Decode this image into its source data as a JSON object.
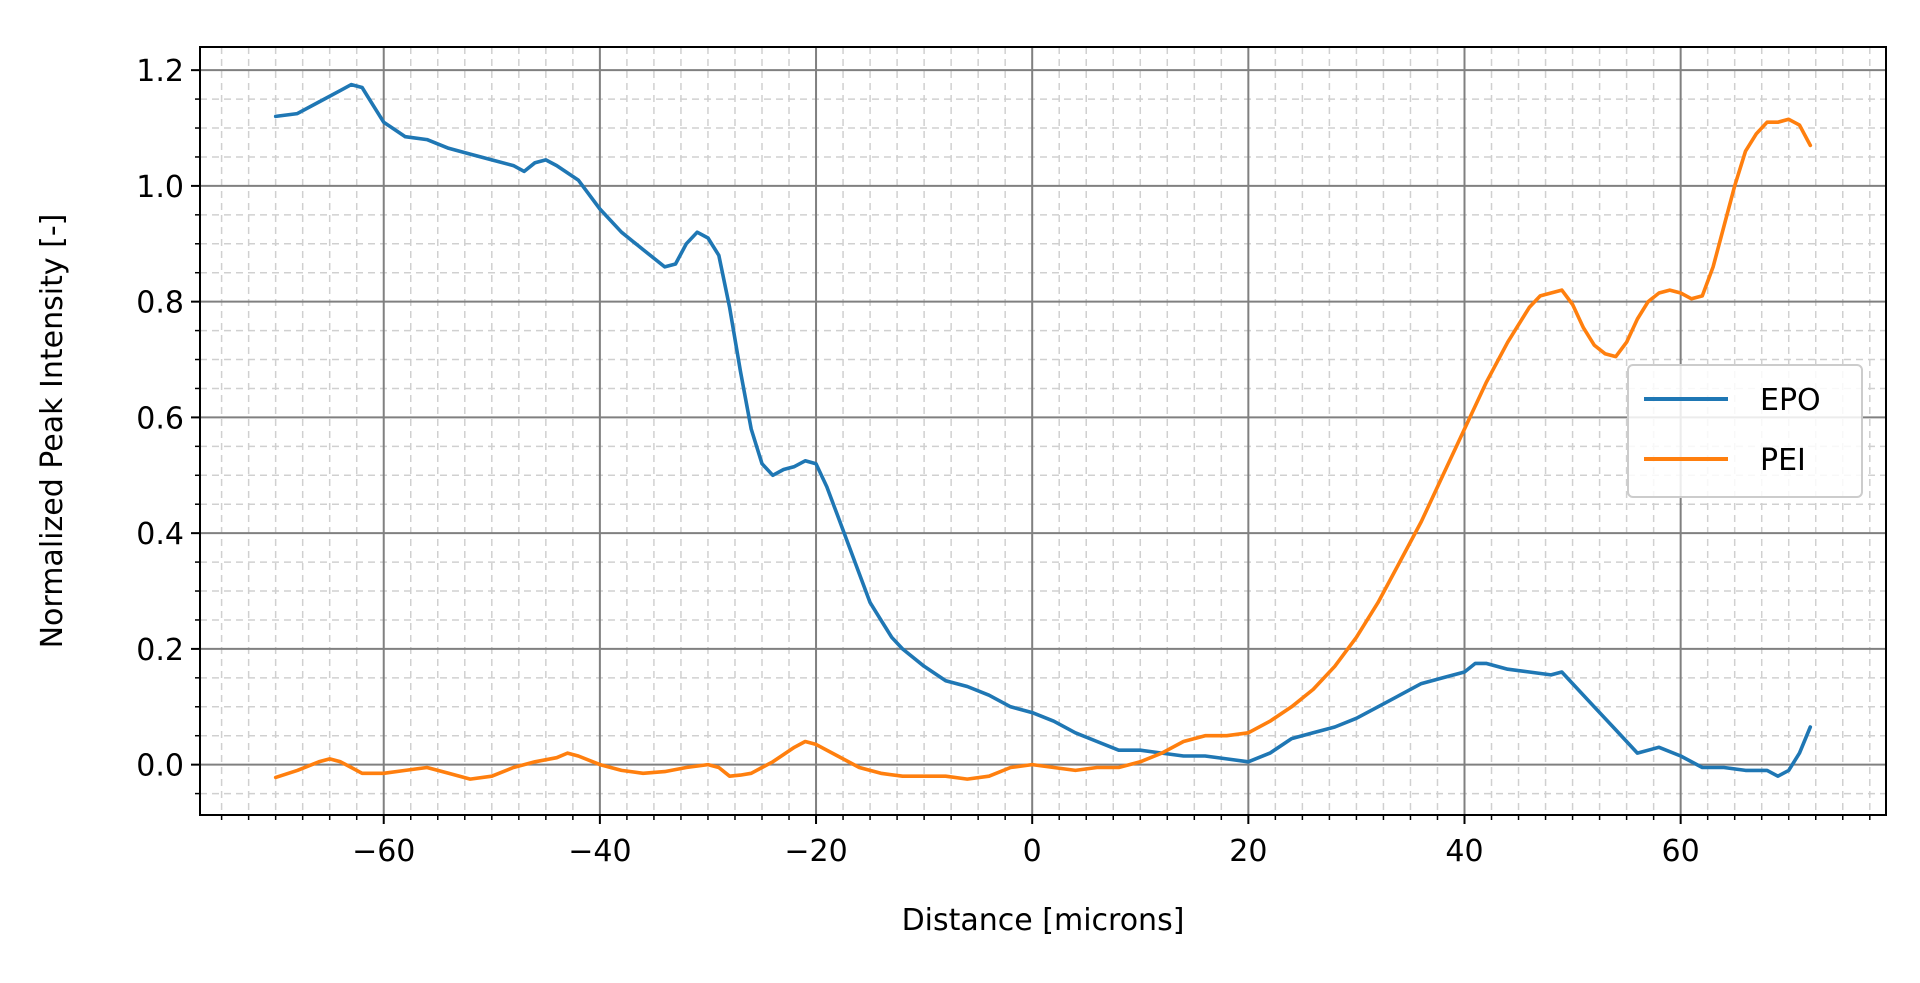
{
  "chart_data": {
    "type": "line",
    "xlabel": "Distance [microns]",
    "ylabel": "Normalized Peak Intensity [-]",
    "xlim": [
      -77,
      79
    ],
    "ylim": [
      -0.087,
      1.24
    ],
    "x_ticks": [
      -60,
      -40,
      -20,
      0,
      20,
      40,
      60
    ],
    "x_tick_labels": [
      "−60",
      "−40",
      "−20",
      "0",
      "20",
      "40",
      "60"
    ],
    "x_minor_step": 2.5,
    "y_ticks": [
      0.0,
      0.2,
      0.4,
      0.6,
      0.8,
      1.0,
      1.2
    ],
    "y_tick_labels": [
      "0.0",
      "0.2",
      "0.4",
      "0.6",
      "0.8",
      "1.0",
      "1.2"
    ],
    "y_minor_step": 0.05,
    "grid": {
      "major": true,
      "minor": true,
      "major_color": "#808080",
      "minor_color": "#d0d0d0"
    },
    "legend": {
      "position": "center-right"
    },
    "series": [
      {
        "name": "EPO",
        "color": "#1f77b4",
        "x": [
          -70,
          -68,
          -66,
          -64,
          -63,
          -62,
          -61,
          -60,
          -58,
          -56,
          -54,
          -52,
          -50,
          -48,
          -47,
          -46,
          -45,
          -44,
          -42,
          -40,
          -38,
          -36,
          -34,
          -33,
          -32,
          -31,
          -30,
          -29,
          -28,
          -27,
          -26,
          -25,
          -24,
          -23,
          -22,
          -21,
          -20,
          -19,
          -18,
          -17,
          -16,
          -15,
          -14,
          -13,
          -12,
          -10,
          -8,
          -6,
          -4,
          -2,
          0,
          2,
          4,
          6,
          8,
          10,
          12,
          14,
          16,
          18,
          20,
          22,
          24,
          26,
          28,
          30,
          32,
          34,
          36,
          38,
          40,
          41,
          42,
          44,
          46,
          48,
          49,
          50,
          52,
          54,
          56,
          58,
          60,
          62,
          64,
          66,
          68,
          69,
          70,
          71,
          72
        ],
        "y": [
          1.12,
          1.125,
          1.145,
          1.165,
          1.175,
          1.17,
          1.14,
          1.11,
          1.085,
          1.08,
          1.065,
          1.055,
          1.045,
          1.035,
          1.025,
          1.04,
          1.045,
          1.035,
          1.01,
          0.96,
          0.92,
          0.89,
          0.86,
          0.865,
          0.9,
          0.92,
          0.91,
          0.88,
          0.79,
          0.68,
          0.58,
          0.52,
          0.5,
          0.51,
          0.515,
          0.525,
          0.52,
          0.48,
          0.43,
          0.38,
          0.33,
          0.28,
          0.25,
          0.22,
          0.2,
          0.17,
          0.145,
          0.135,
          0.12,
          0.1,
          0.09,
          0.075,
          0.055,
          0.04,
          0.025,
          0.025,
          0.02,
          0.015,
          0.015,
          0.01,
          0.005,
          0.02,
          0.045,
          0.055,
          0.065,
          0.08,
          0.1,
          0.12,
          0.14,
          0.15,
          0.16,
          0.175,
          0.175,
          0.165,
          0.16,
          0.155,
          0.16,
          0.14,
          0.1,
          0.06,
          0.02,
          0.03,
          0.015,
          -0.005,
          -0.005,
          -0.01,
          -0.01,
          -0.02,
          -0.01,
          0.02,
          0.065
        ]
      },
      {
        "name": "PEI",
        "color": "#ff7f0e",
        "x": [
          -70,
          -68,
          -66,
          -65,
          -64,
          -63,
          -62,
          -60,
          -58,
          -56,
          -54,
          -52,
          -50,
          -48,
          -46,
          -44,
          -43,
          -42,
          -40,
          -38,
          -36,
          -34,
          -32,
          -30,
          -29,
          -28,
          -27,
          -26,
          -25,
          -24,
          -22,
          -21,
          -20,
          -18,
          -16,
          -14,
          -12,
          -10,
          -8,
          -6,
          -4,
          -2,
          0,
          2,
          4,
          6,
          8,
          10,
          12,
          14,
          16,
          18,
          20,
          22,
          24,
          26,
          28,
          30,
          32,
          34,
          36,
          38,
          40,
          42,
          44,
          46,
          47,
          48,
          49,
          50,
          51,
          52,
          53,
          54,
          55,
          56,
          57,
          58,
          59,
          60,
          61,
          62,
          63,
          64,
          65,
          66,
          67,
          68,
          69,
          70,
          71,
          72
        ],
        "y": [
          -0.022,
          -0.01,
          0.005,
          0.01,
          0.005,
          -0.005,
          -0.015,
          -0.015,
          -0.01,
          -0.005,
          -0.015,
          -0.025,
          -0.02,
          -0.005,
          0.005,
          0.012,
          0.02,
          0.015,
          0.0,
          -0.01,
          -0.015,
          -0.012,
          -0.005,
          0.0,
          -0.005,
          -0.02,
          -0.018,
          -0.015,
          -0.005,
          0.005,
          0.03,
          0.04,
          0.035,
          0.015,
          -0.005,
          -0.015,
          -0.02,
          -0.02,
          -0.02,
          -0.025,
          -0.02,
          -0.005,
          0.0,
          -0.005,
          -0.01,
          -0.005,
          -0.005,
          0.005,
          0.02,
          0.04,
          0.05,
          0.05,
          0.055,
          0.075,
          0.1,
          0.13,
          0.17,
          0.22,
          0.28,
          0.35,
          0.42,
          0.5,
          0.58,
          0.66,
          0.73,
          0.79,
          0.81,
          0.815,
          0.82,
          0.795,
          0.755,
          0.725,
          0.71,
          0.705,
          0.73,
          0.77,
          0.8,
          0.815,
          0.82,
          0.815,
          0.805,
          0.81,
          0.86,
          0.93,
          1.0,
          1.06,
          1.09,
          1.11,
          1.11,
          1.115,
          1.105,
          1.07
        ]
      }
    ]
  }
}
